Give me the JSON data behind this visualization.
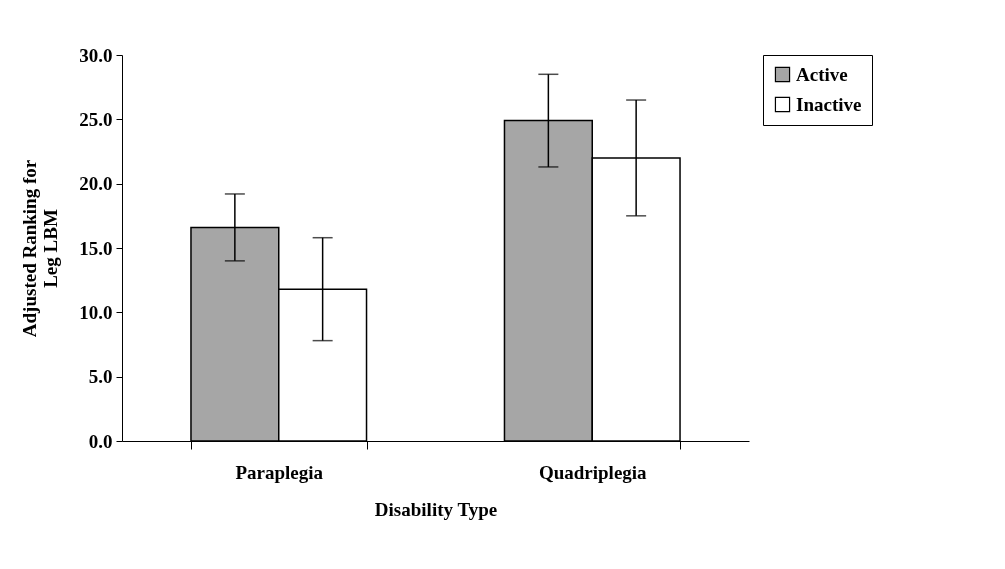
{
  "chart_data": {
    "type": "bar",
    "xlabel": "Disability Type",
    "ylabel": "Adjusted Ranking for Leg LBM",
    "categories": [
      "Paraplegia",
      "Quadriplegia"
    ],
    "series": [
      {
        "name": "Active",
        "color": "#a6a6a6",
        "values": [
          16.6,
          24.9
        ],
        "errors": [
          2.6,
          3.6
        ]
      },
      {
        "name": "Inactive",
        "color": "#ffffff",
        "values": [
          11.8,
          22.0
        ],
        "errors": [
          4.0,
          4.5
        ]
      }
    ],
    "ylim": [
      0,
      30
    ],
    "yticks": [
      {
        "value": 0,
        "label": "0.0"
      },
      {
        "value": 5,
        "label": "5.0"
      },
      {
        "value": 10,
        "label": "10.0"
      },
      {
        "value": 15,
        "label": "15.0"
      },
      {
        "value": 20,
        "label": "20.0"
      },
      {
        "value": 25,
        "label": "25.0"
      },
      {
        "value": 30,
        "label": "30.0"
      }
    ],
    "grid": false,
    "legend": "right"
  }
}
